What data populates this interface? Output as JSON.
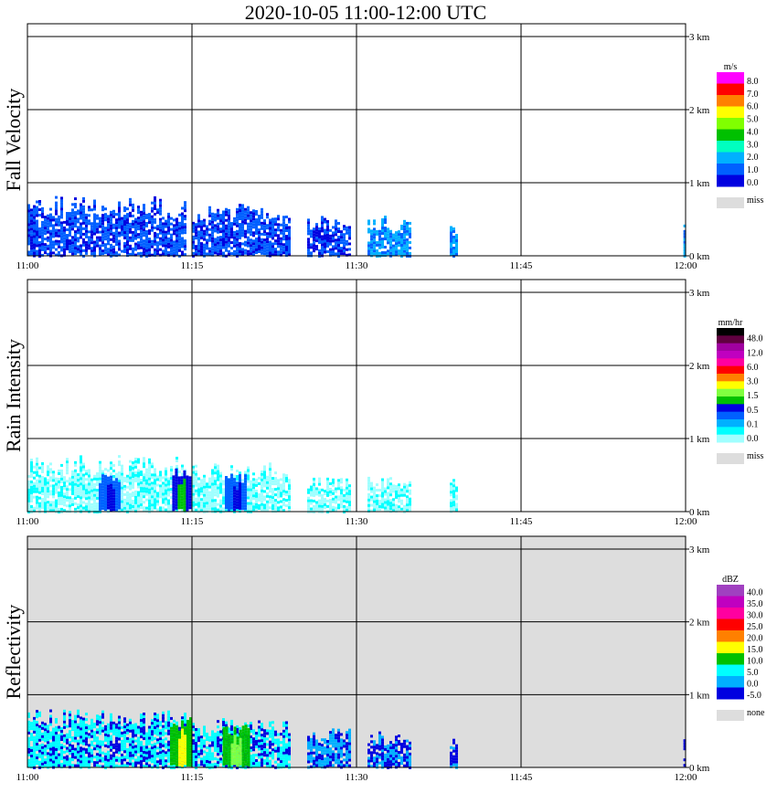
{
  "title": "2020-10-05   11:00-12:00 UTC",
  "chart_data": [
    {
      "type": "heatmap",
      "ylabel": "Fall Velocity",
      "x_ticks": [
        "11:00",
        "11:15",
        "11:30",
        "11:45",
        "12:00"
      ],
      "y_ticks": [
        "0 km",
        "1 km",
        "2 km",
        "3 km"
      ],
      "background": "#ffffff",
      "legend": {
        "unit": "m/s",
        "labels": [
          "8.0",
          "7.0",
          "6.0",
          "5.0",
          "4.0",
          "3.0",
          "2.0",
          "1.0",
          "0.0"
        ],
        "colors": [
          "#ff00ff",
          "#ff0000",
          "#ff8000",
          "#ffff00",
          "#80ff00",
          "#00c000",
          "#00ffc0",
          "#00b0ff",
          "#0060ff",
          "#0000e0"
        ],
        "miss_label": "miss",
        "miss_color": "#dddddd"
      },
      "clouds": [
        {
          "start": "11:00",
          "end": "11:14.5",
          "top_km": 0.82,
          "color": "#0060ff",
          "accent": "#0000e0"
        },
        {
          "start": "11:15",
          "end": "11:24",
          "top_km": 0.72,
          "color": "#0060ff",
          "accent": "#0000e0"
        },
        {
          "start": "11:25.5",
          "end": "11:29.5",
          "top_km": 0.55,
          "color": "#0060ff",
          "accent": "#0000e0"
        },
        {
          "start": "11:31",
          "end": "11:35",
          "top_km": 0.55,
          "color": "#00b0ff",
          "accent": "#0060ff"
        },
        {
          "start": "11:38.5",
          "end": "11:39.2",
          "top_km": 0.5,
          "color": "#00b0ff",
          "accent": "#0060ff"
        },
        {
          "start": "11:59.8",
          "end": "12:00",
          "top_km": 0.55,
          "color": "#00b0ff",
          "accent": "#0060ff"
        }
      ]
    },
    {
      "type": "heatmap",
      "ylabel": "Rain Intensity",
      "x_ticks": [
        "11:00",
        "11:15",
        "11:30",
        "11:45",
        "12:00"
      ],
      "y_ticks": [
        "0 km",
        "1 km",
        "2 km",
        "3 km"
      ],
      "background": "#ffffff",
      "legend": {
        "unit": "mm/hr",
        "labels": [
          "48.0",
          "12.0",
          "6.0",
          "3.0",
          "1.5",
          "0.5",
          "0.1",
          "0.0"
        ],
        "colors": [
          "#000000",
          "#600040",
          "#a000a0",
          "#c000c0",
          "#ff00a0",
          "#ff0000",
          "#ff8000",
          "#ffff00",
          "#80ff40",
          "#00c000",
          "#0000e0",
          "#0060ff",
          "#00b0ff",
          "#00ffff",
          "#a0ffff"
        ],
        "miss_label": "miss",
        "miss_color": "#dddddd"
      },
      "clouds": [
        {
          "start": "11:00",
          "end": "11:14.5",
          "top_km": 0.78,
          "color": "#a0ffff",
          "accent": "#00ffff"
        },
        {
          "start": "11:15",
          "end": "11:24",
          "top_km": 0.68,
          "color": "#a0ffff",
          "accent": "#00ffff"
        },
        {
          "start": "11:25.5",
          "end": "11:29.5",
          "top_km": 0.5,
          "color": "#a0ffff",
          "accent": "#00ffff"
        },
        {
          "start": "11:31",
          "end": "11:35",
          "top_km": 0.5,
          "color": "#a0ffff",
          "accent": "#00ffff"
        },
        {
          "start": "11:38.5",
          "end": "11:39.2",
          "top_km": 0.45,
          "color": "#a0ffff",
          "accent": "#00ffff"
        }
      ],
      "cores": [
        {
          "at": "11:14",
          "width_min": 0.8,
          "top_km": 0.6,
          "color": "#0000e0",
          "inner": "#00c000"
        },
        {
          "at": "11:07.5",
          "width_min": 1.0,
          "top_km": 0.55,
          "color": "#0060ff",
          "inner": "#0000e0"
        },
        {
          "at": "11:19",
          "width_min": 1.0,
          "top_km": 0.55,
          "color": "#0060ff",
          "inner": "#0000e0"
        }
      ]
    },
    {
      "type": "heatmap",
      "ylabel": "Reflectivity",
      "x_ticks": [
        "11:00",
        "11:15",
        "11:30",
        "11:45",
        "12:00"
      ],
      "y_ticks": [
        "0 km",
        "1 km",
        "2 km",
        "3 km"
      ],
      "background": "#dddddd",
      "legend": {
        "unit": "dBZ",
        "labels": [
          "40.0",
          "35.0",
          "30.0",
          "25.0",
          "20.0",
          "15.0",
          "10.0",
          "5.0",
          "0.0",
          "-5.0"
        ],
        "colors": [
          "#a040c0",
          "#c000c0",
          "#ff00a0",
          "#ff0000",
          "#ff8000",
          "#ffff00",
          "#00c000",
          "#00ffff",
          "#00b0ff",
          "#0000e0"
        ],
        "miss_label": "none",
        "miss_color": "#dddddd"
      },
      "clouds": [
        {
          "start": "11:00",
          "end": "11:14.5",
          "top_km": 0.8,
          "color": "#00ffff",
          "accent": "#0000e0"
        },
        {
          "start": "11:15",
          "end": "11:24",
          "top_km": 0.7,
          "color": "#00ffff",
          "accent": "#0000e0"
        },
        {
          "start": "11:25.5",
          "end": "11:29.5",
          "top_km": 0.55,
          "color": "#00b0ff",
          "accent": "#0000e0"
        },
        {
          "start": "11:31",
          "end": "11:35",
          "top_km": 0.5,
          "color": "#0000e0",
          "accent": "#00b0ff"
        },
        {
          "start": "11:38.5",
          "end": "11:39.2",
          "top_km": 0.45,
          "color": "#0000e0",
          "accent": "#00b0ff"
        },
        {
          "start": "11:59.8",
          "end": "12:00",
          "top_km": 0.5,
          "color": "#0000e0",
          "accent": "#0000e0"
        }
      ],
      "cores": [
        {
          "at": "11:14",
          "width_min": 1.0,
          "top_km": 0.7,
          "color": "#00c000",
          "inner": "#ffff00"
        },
        {
          "at": "11:19",
          "width_min": 1.2,
          "top_km": 0.6,
          "color": "#00c000",
          "inner": "#80ff40"
        }
      ]
    }
  ]
}
